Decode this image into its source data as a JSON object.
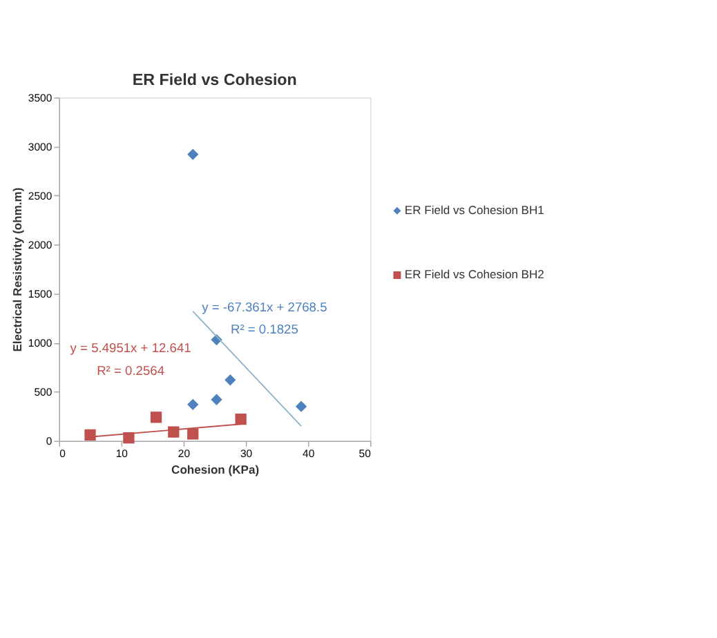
{
  "chart_data": {
    "type": "scatter",
    "title": "ER Field vs Cohesion",
    "xlabel": "Cohesion (KPa)",
    "ylabel": "Electrical Resistivity (ohm.m)",
    "xlim": [
      0,
      50
    ],
    "xticks": [
      0,
      10,
      20,
      30,
      40,
      50
    ],
    "ylim": [
      0,
      3500
    ],
    "yticks": [
      0,
      500,
      1000,
      1500,
      2000,
      2500,
      3000,
      3500
    ],
    "grid": false,
    "legend": "right",
    "series": [
      {
        "name": "ER Field vs Cohesion BH1",
        "color": "#4f81bd",
        "marker": "diamond",
        "x": [
          21.5,
          21.5,
          25.3,
          25.3,
          27.5,
          38.9
        ],
        "values": [
          2920,
          370,
          1030,
          420,
          620,
          350
        ]
      },
      {
        "name": "ER Field vs Cohesion BH2",
        "color": "#c0504d",
        "marker": "square",
        "x": [
          5.0,
          11.2,
          15.6,
          18.4,
          21.5,
          29.2
        ],
        "values": [
          60,
          30,
          240,
          90,
          70,
          220
        ]
      },
      {
        "type": "line",
        "color": "#8fb3c9",
        "x": [
          21.5,
          38.9
        ],
        "values": [
          1320,
          150
        ]
      },
      {
        "type": "line",
        "color": "#c0504d",
        "x": [
          5.0,
          29.2
        ],
        "values": [
          40,
          170
        ]
      }
    ],
    "annotations": [
      "y = -67.361x + 2768.5",
      "R² = 0.1825",
      "y = 5.4951x + 12.641",
      "R² = 0.2564"
    ]
  }
}
